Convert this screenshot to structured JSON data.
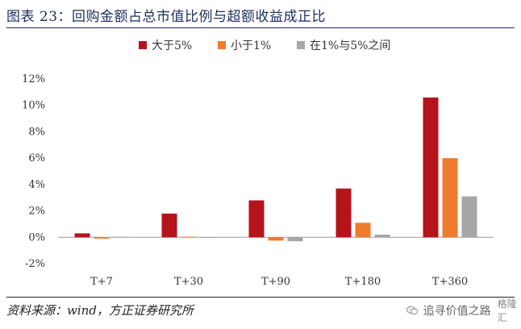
{
  "header": {
    "title": "图表 23：回购金额占总市值比例与超额收益成正比"
  },
  "footer": {
    "source": "资料来源：wind，方正证券研究所"
  },
  "watermark": {
    "text": "追寻价值之路",
    "brand": "格隆汇",
    "icon": "wechat-icon"
  },
  "colors": {
    "series": [
      "#b5141c",
      "#ef7b2e",
      "#a6a6a6"
    ],
    "grid": "#d9d9d9",
    "axis": "#999999"
  },
  "chart_data": {
    "type": "bar",
    "title": "",
    "xlabel": "",
    "ylabel": "",
    "categories": [
      "T+7",
      "T+30",
      "T+90",
      "T+180",
      "T+360"
    ],
    "series": [
      {
        "name": "大于5%",
        "values": [
          0.3,
          1.8,
          2.8,
          3.7,
          10.6
        ]
      },
      {
        "name": "小于1%",
        "values": [
          -0.1,
          0.05,
          -0.25,
          1.1,
          6.0
        ]
      },
      {
        "name": "在1%与5%之间",
        "values": [
          0.05,
          0.0,
          -0.3,
          0.2,
          3.1
        ]
      }
    ],
    "ylim": [
      -2,
      12
    ],
    "yticks": [
      -2,
      0,
      2,
      4,
      6,
      8,
      10,
      12
    ],
    "ytick_labels": [
      "-2%",
      "0%",
      "2%",
      "4%",
      "6%",
      "8%",
      "10%",
      "12%"
    ],
    "legend_position": "top-center",
    "grid": false
  }
}
